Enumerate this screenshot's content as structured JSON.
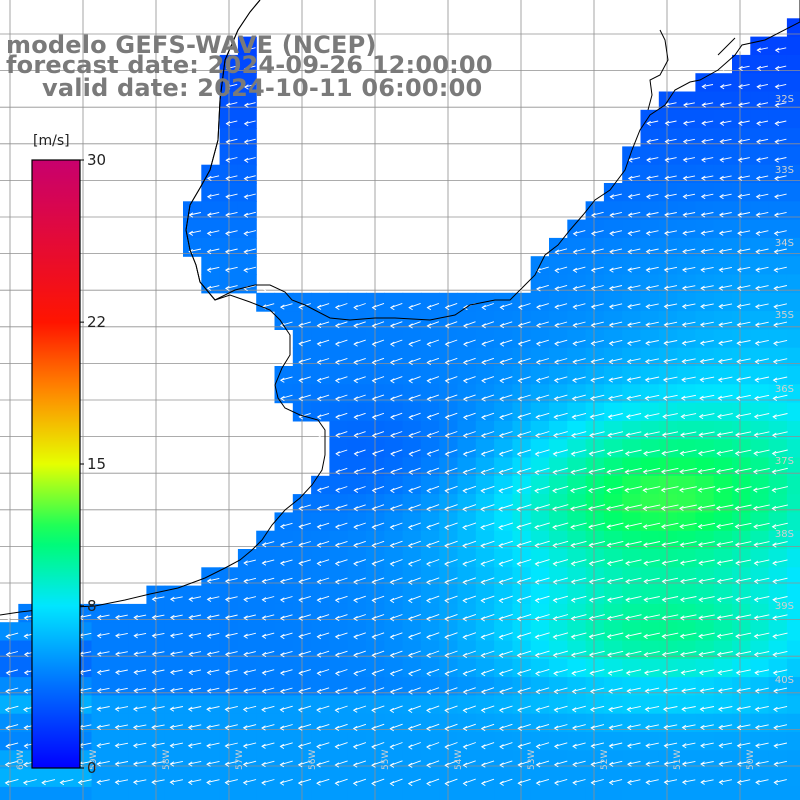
{
  "title": {
    "line1": "modelo GEFS-WAVE (NCEP)",
    "line2": "forecast date: 2024-09-26 12:00:00",
    "line3": "valid date: 2024-10-11 06:00:00"
  },
  "colorbar": {
    "unit": "[m/s]",
    "min": 0,
    "max": 30,
    "tick_labels": [
      "30",
      "22",
      "15",
      "8",
      "0"
    ],
    "tick_values": [
      30,
      22,
      15,
      8,
      0
    ],
    "colors": [
      "#0000ff",
      "#00a8ff",
      "#00ffff",
      "#00ff00",
      "#ffff00",
      "#ff7f00",
      "#ff0000",
      "#c8006e"
    ]
  },
  "map": {
    "lat_labels": [
      "32S",
      "33S",
      "34S",
      "35S",
      "36S",
      "37S",
      "38S",
      "39S",
      "40S"
    ],
    "lon_labels": [
      "60W",
      "59W",
      "58W",
      "57W",
      "56W",
      "55W",
      "54W",
      "53W",
      "52W",
      "51W",
      "50W"
    ],
    "land_color": "#ffffff",
    "grid_color": "#909090",
    "coast_color": "#000000",
    "arrow_color": "#ffffff",
    "prevailing_direction": "from east (arrows pointing west)"
  }
}
